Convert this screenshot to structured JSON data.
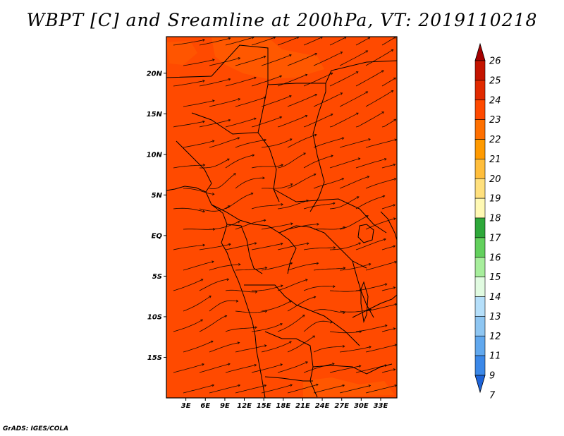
{
  "title": "WBPT [C] and Sreamline at 200hPa, VT: 2019110218",
  "footer": "GrADS: IGES/COLA",
  "map": {
    "lon_range": [
      0,
      35.5
    ],
    "lat_range": [
      -20,
      24.5
    ],
    "fill_color": "#ff4a00",
    "fill_color_light": "#ff6400",
    "lat_ticks": [
      {
        "value": 20,
        "label": "20N"
      },
      {
        "value": 15,
        "label": "15N"
      },
      {
        "value": 10,
        "label": "10N"
      },
      {
        "value": 5,
        "label": "5N"
      },
      {
        "value": 0,
        "label": "EQ"
      },
      {
        "value": -5,
        "label": "5S"
      },
      {
        "value": -10,
        "label": "10S"
      },
      {
        "value": -15,
        "label": "15S"
      }
    ],
    "lon_ticks": [
      {
        "value": 3,
        "label": "3E"
      },
      {
        "value": 6,
        "label": "6E"
      },
      {
        "value": 9,
        "label": "9E"
      },
      {
        "value": 12,
        "label": "12E"
      },
      {
        "value": 15,
        "label": "15E"
      },
      {
        "value": 18,
        "label": "18E"
      },
      {
        "value": 21,
        "label": "21E"
      },
      {
        "value": 24,
        "label": "24E"
      },
      {
        "value": 27,
        "label": "27E"
      },
      {
        "value": 30,
        "label": "30E"
      },
      {
        "value": 33,
        "label": "33E"
      }
    ]
  },
  "colorbar": {
    "labels": [
      "26",
      "25",
      "24",
      "23",
      "22",
      "21",
      "20",
      "19",
      "18",
      "17",
      "16",
      "15",
      "14",
      "13",
      "12",
      "11",
      "9",
      "7"
    ],
    "colors": [
      "#a50000",
      "#c41400",
      "#e12a00",
      "#ff4a00",
      "#ff7000",
      "#ff9a00",
      "#ffbe3c",
      "#ffe07d",
      "#fff9b4",
      "#2ea83a",
      "#63d05d",
      "#a7ee9c",
      "#e1fbe1",
      "#b5dffa",
      "#8ec6f2",
      "#61a8ee",
      "#3b88e8",
      "#1d63d8"
    ]
  }
}
